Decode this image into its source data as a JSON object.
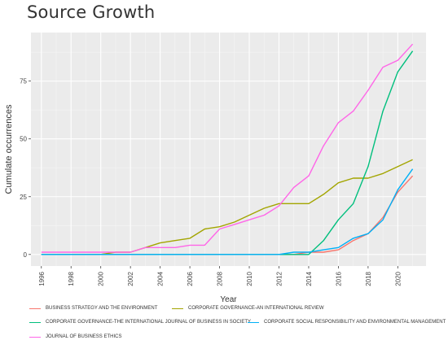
{
  "page": {
    "title": "Source Growth"
  },
  "chart_data": {
    "type": "line",
    "title": "Source Growth",
    "xlabel": "Year",
    "ylabel": "Cumulate occurrences",
    "xlim": [
      1995.3,
      2021.9
    ],
    "ylim": [
      -5,
      96
    ],
    "xticks": [
      1996,
      1998,
      2000,
      2002,
      2004,
      2006,
      2008,
      2010,
      2012,
      2014,
      2016,
      2018,
      2020
    ],
    "yticks": [
      0,
      25,
      50,
      75
    ],
    "grid": true,
    "legend_position": "bottom",
    "series": [
      {
        "name": "BUSINESS STRATEGY AND THE ENVIRONMENT",
        "color": "#f8766d",
        "x": [
          1996,
          1997,
          1998,
          1999,
          2000,
          2001,
          2002,
          2003,
          2004,
          2005,
          2006,
          2007,
          2008,
          2009,
          2010,
          2011,
          2012,
          2013,
          2014,
          2015,
          2016,
          2017,
          2018,
          2019,
          2020,
          2021
        ],
        "y": [
          0,
          0,
          0,
          0,
          0,
          0,
          0,
          0,
          0,
          0,
          0,
          0,
          0,
          0,
          0,
          0,
          0,
          0,
          1,
          1,
          2,
          6,
          9,
          16,
          27,
          34
        ]
      },
      {
        "name": "CORPORATE GOVERNANCE-AN INTERNATIONAL REVIEW",
        "color": "#a3a500",
        "x": [
          1996,
          1997,
          1998,
          1999,
          2000,
          2001,
          2002,
          2003,
          2004,
          2005,
          2006,
          2007,
          2008,
          2009,
          2010,
          2011,
          2012,
          2013,
          2014,
          2015,
          2016,
          2017,
          2018,
          2019,
          2020,
          2021
        ],
        "y": [
          0,
          0,
          0,
          0,
          0,
          1,
          1,
          3,
          5,
          6,
          7,
          11,
          12,
          14,
          17,
          20,
          22,
          22,
          22,
          26,
          31,
          33,
          33,
          35,
          38,
          41
        ]
      },
      {
        "name": "CORPORATE GOVERNANCE-THE INTERNATIONAL JOURNAL OF BUSINESS IN SOCIETY",
        "color": "#00bf7d",
        "x": [
          1996,
          1997,
          1998,
          1999,
          2000,
          2001,
          2002,
          2003,
          2004,
          2005,
          2006,
          2007,
          2008,
          2009,
          2010,
          2011,
          2012,
          2013,
          2014,
          2015,
          2016,
          2017,
          2018,
          2019,
          2020,
          2021
        ],
        "y": [
          0,
          0,
          0,
          0,
          0,
          0,
          0,
          0,
          0,
          0,
          0,
          0,
          0,
          0,
          0,
          0,
          0,
          0,
          0,
          6,
          15,
          22,
          38,
          62,
          79,
          88
        ]
      },
      {
        "name": "CORPORATE SOCIAL RESPONSIBILITY AND ENVIRONMENTAL MANAGEMENT",
        "color": "#00b0f6",
        "x": [
          1996,
          1997,
          1998,
          1999,
          2000,
          2001,
          2002,
          2003,
          2004,
          2005,
          2006,
          2007,
          2008,
          2009,
          2010,
          2011,
          2012,
          2013,
          2014,
          2015,
          2016,
          2017,
          2018,
          2019,
          2020,
          2021
        ],
        "y": [
          0,
          0,
          0,
          0,
          0,
          0,
          0,
          0,
          0,
          0,
          0,
          0,
          0,
          0,
          0,
          0,
          0,
          1,
          1,
          2,
          3,
          7,
          9,
          15,
          28,
          37
        ]
      },
      {
        "name": "JOURNAL OF BUSINESS ETHICS",
        "color": "#ff66e8",
        "x": [
          1996,
          1997,
          1998,
          1999,
          2000,
          2001,
          2002,
          2003,
          2004,
          2005,
          2006,
          2007,
          2008,
          2009,
          2010,
          2011,
          2012,
          2013,
          2014,
          2015,
          2016,
          2017,
          2018,
          2019,
          2020,
          2021
        ],
        "y": [
          1,
          1,
          1,
          1,
          1,
          1,
          1,
          3,
          3,
          3,
          4,
          4,
          11,
          13,
          15,
          17,
          21,
          29,
          34,
          47,
          57,
          62,
          71,
          81,
          84,
          91
        ]
      }
    ]
  }
}
